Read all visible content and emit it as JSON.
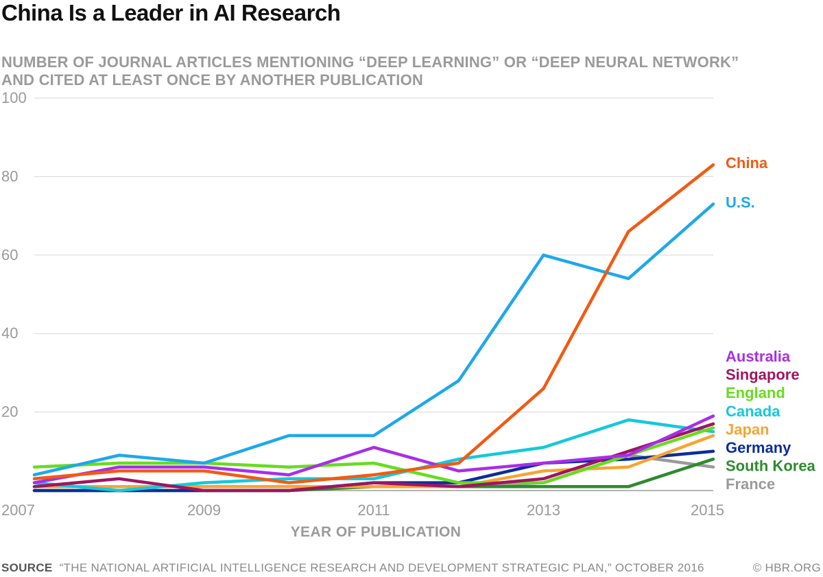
{
  "header": {
    "title": "China Is a Leader in AI Research",
    "subtitle_line1": "NUMBER OF JOURNAL ARTICLES MENTIONING “DEEP LEARNING” OR “DEEP NEURAL NETWORK”",
    "subtitle_line2": "AND CITED AT LEAST ONCE BY ANOTHER PUBLICATION"
  },
  "footer": {
    "source_label": "SOURCE",
    "source_text": "“THE NATIONAL ARTIFICIAL INTELLIGENCE RESEARCH AND DEVELOPMENT STRATEGIC PLAN,” OCTOBER 2016",
    "credit": "© HBR.ORG"
  },
  "chart_data": {
    "type": "line",
    "title": "China Is a Leader in AI Research",
    "subtitle": "NUMBER OF JOURNAL ARTICLES MENTIONING “DEEP LEARNING” OR “DEEP NEURAL NETWORK” AND CITED AT LEAST ONCE BY ANOTHER PUBLICATION",
    "xlabel": "YEAR OF PUBLICATION",
    "ylabel": "",
    "x": [
      2007,
      2008,
      2009,
      2010,
      2011,
      2012,
      2013,
      2014,
      2015
    ],
    "xticks": [
      "2007",
      "2009",
      "2011",
      "2013",
      "2015"
    ],
    "xtick_values": [
      2007,
      2009,
      2011,
      2013,
      2015
    ],
    "yticks": [
      "20",
      "40",
      "60",
      "80",
      "100"
    ],
    "ytick_values": [
      20,
      40,
      60,
      80,
      100
    ],
    "xlim": [
      2007,
      2015
    ],
    "ylim": [
      0,
      100
    ],
    "grid": true,
    "legend": "labels at right end of lines",
    "series": [
      {
        "name": "France",
        "color": "#9a9a9a",
        "values": [
          1,
          1,
          1,
          1,
          1,
          1,
          2,
          9,
          6
        ]
      },
      {
        "name": "South Korea",
        "color": "#2e8b2e",
        "values": [
          0,
          0,
          0,
          0,
          1,
          1,
          1,
          1,
          8
        ]
      },
      {
        "name": "Germany",
        "color": "#0a2d9c",
        "values": [
          0,
          0,
          0,
          0,
          2,
          2,
          7,
          8,
          10
        ]
      },
      {
        "name": "Japan",
        "color": "#f5a533",
        "values": [
          1,
          1,
          1,
          1,
          1,
          1,
          5,
          6,
          14
        ]
      },
      {
        "name": "Canada",
        "color": "#14c8dc",
        "values": [
          2,
          0,
          2,
          3,
          3,
          8,
          11,
          18,
          15
        ]
      },
      {
        "name": "England",
        "color": "#66dd1e",
        "values": [
          6,
          7,
          7,
          6,
          7,
          2,
          2,
          9,
          16
        ]
      },
      {
        "name": "Singapore",
        "color": "#a01560",
        "values": [
          1,
          3,
          0,
          0,
          2,
          1,
          3,
          10,
          17
        ]
      },
      {
        "name": "Australia",
        "color": "#a82ee8",
        "values": [
          2,
          6,
          6,
          4,
          11,
          5,
          7,
          9,
          19
        ]
      },
      {
        "name": "U.S.",
        "color": "#1ea8ea",
        "values": [
          4,
          9,
          7,
          14,
          14,
          28,
          60,
          54,
          73
        ]
      },
      {
        "name": "China",
        "color": "#f25a12",
        "values": [
          3,
          5,
          5,
          2,
          4,
          7,
          26,
          66,
          83
        ]
      }
    ],
    "label_order": [
      "China",
      "U.S.",
      "Australia",
      "Singapore",
      "England",
      "Canada",
      "Japan",
      "Germany",
      "South Korea",
      "France"
    ]
  }
}
